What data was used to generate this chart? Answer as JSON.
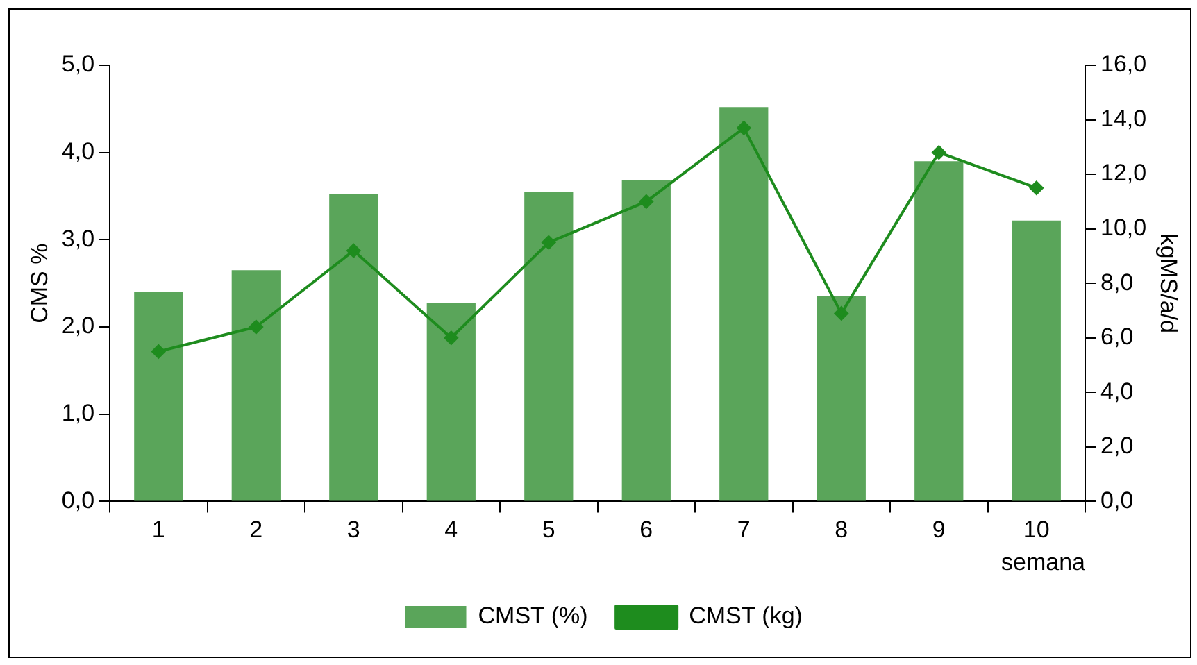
{
  "chart_data": {
    "type": "bar",
    "xlabel": "semana",
    "ylabel": "CMS %",
    "y2label": "kgMS/a/d",
    "categories": [
      "1",
      "2",
      "3",
      "4",
      "5",
      "6",
      "7",
      "8",
      "9",
      "10"
    ],
    "series": [
      {
        "name": "CMST (%)",
        "color": "#5aa55a",
        "values": [
          2.4,
          2.65,
          3.52,
          2.27,
          3.55,
          3.68,
          4.52,
          2.35,
          3.9,
          3.22
        ]
      },
      {
        "name": "CMST (kg)",
        "type": "line",
        "axis": "y2",
        "color": "#1e8c1e",
        "values": [
          5.5,
          6.4,
          9.2,
          6.0,
          9.5,
          11.0,
          13.7,
          6.9,
          12.8,
          11.5
        ]
      }
    ],
    "ylim": [
      0,
      5
    ],
    "yticks": [
      {
        "value": 0,
        "label": "0,0"
      },
      {
        "value": 1,
        "label": "1,0"
      },
      {
        "value": 2,
        "label": "2,0"
      },
      {
        "value": 3,
        "label": "3,0"
      },
      {
        "value": 4,
        "label": "4,0"
      },
      {
        "value": 5,
        "label": "5,0"
      }
    ],
    "y2lim": [
      0,
      16
    ],
    "y2ticks": [
      {
        "value": 0,
        "label": "0,0"
      },
      {
        "value": 2,
        "label": "2,0"
      },
      {
        "value": 4,
        "label": "4,0"
      },
      {
        "value": 6,
        "label": "6,0"
      },
      {
        "value": 8,
        "label": "8,0"
      },
      {
        "value": 10,
        "label": "10,0"
      },
      {
        "value": 12,
        "label": "12,0"
      },
      {
        "value": 14,
        "label": "14,0"
      },
      {
        "value": 16,
        "label": "16,0"
      }
    ],
    "grid": false,
    "legend": "bottom",
    "marker": "diamond"
  }
}
